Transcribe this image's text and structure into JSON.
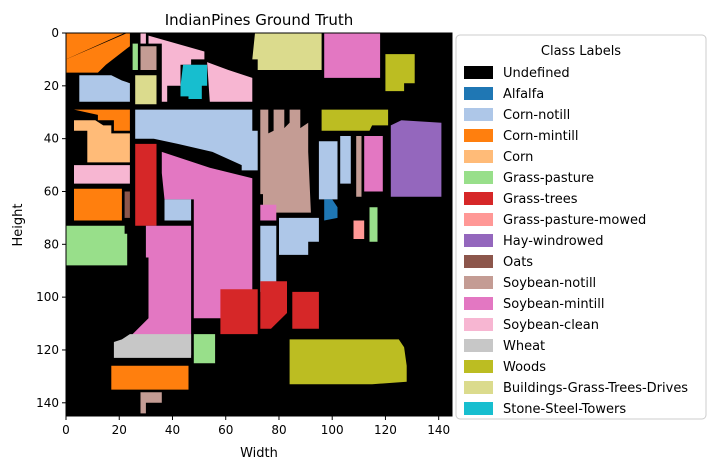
{
  "chart_data": {
    "type": "heatmap",
    "title": "IndianPines Ground Truth",
    "xlabel": "Width",
    "ylabel": "Height",
    "xlim": [
      0,
      145
    ],
    "ylim": [
      145,
      0
    ],
    "xticks": [
      0,
      20,
      40,
      60,
      80,
      100,
      120,
      140
    ],
    "yticks": [
      0,
      20,
      40,
      60,
      80,
      100,
      120,
      140
    ],
    "legend_title": "Class Labels",
    "legend_position": "right",
    "classes": [
      {
        "name": "Undefined",
        "color": "#000000"
      },
      {
        "name": "Alfalfa",
        "color": "#1f77b4"
      },
      {
        "name": "Corn-notill",
        "color": "#aec7e8"
      },
      {
        "name": "Corn-mintill",
        "color": "#ff7f0e"
      },
      {
        "name": "Corn",
        "color": "#ffbb78"
      },
      {
        "name": "Grass-pasture",
        "color": "#98df8a"
      },
      {
        "name": "Grass-trees",
        "color": "#d62728"
      },
      {
        "name": "Grass-pasture-mowed",
        "color": "#ff9896"
      },
      {
        "name": "Hay-windrowed",
        "color": "#9467bd"
      },
      {
        "name": "Oats",
        "color": "#8c564b"
      },
      {
        "name": "Soybean-notill",
        "color": "#c49c94"
      },
      {
        "name": "Soybean-mintill",
        "color": "#e377c2"
      },
      {
        "name": "Soybean-clean",
        "color": "#f7b6d2"
      },
      {
        "name": "Wheat",
        "color": "#c7c7c7"
      },
      {
        "name": "Woods",
        "color": "#bcbd22"
      },
      {
        "name": "Buildings-Grass-Trees-Drives",
        "color": "#dbdb8d"
      },
      {
        "name": "Stone-Steel-Towers",
        "color": "#17becf"
      }
    ],
    "regions": [
      {
        "label": "Corn-mintill",
        "poly": [
          [
            0,
            0
          ],
          [
            22,
            0
          ],
          [
            0,
            10
          ]
        ]
      },
      {
        "label": "Corn-mintill",
        "poly": [
          [
            23,
            0
          ],
          [
            24,
            0
          ],
          [
            24,
            5
          ],
          [
            15,
            12
          ],
          [
            12,
            15
          ],
          [
            0,
            15
          ],
          [
            0,
            10
          ]
        ]
      },
      {
        "label": "Corn-notill",
        "poly": [
          [
            5,
            16
          ],
          [
            17,
            16
          ],
          [
            21,
            18
          ],
          [
            24,
            19
          ],
          [
            24,
            26
          ],
          [
            5,
            26
          ]
        ]
      },
      {
        "label": "Corn-mintill",
        "poly": [
          [
            3,
            29
          ],
          [
            24,
            29
          ],
          [
            24,
            37
          ],
          [
            18,
            37
          ],
          [
            18,
            33
          ],
          [
            12,
            33
          ],
          [
            12,
            31
          ]
        ]
      },
      {
        "label": "Corn",
        "poly": [
          [
            3,
            33
          ],
          [
            11,
            33
          ],
          [
            14,
            35
          ],
          [
            17,
            35
          ],
          [
            17,
            38
          ],
          [
            24,
            38
          ],
          [
            24,
            49
          ],
          [
            8,
            49
          ],
          [
            8,
            37
          ],
          [
            3,
            37
          ]
        ]
      },
      {
        "label": "Soybean-clean",
        "poly": [
          [
            3,
            50
          ],
          [
            24,
            50
          ],
          [
            24,
            57
          ],
          [
            3,
            57
          ]
        ]
      },
      {
        "label": "Corn-mintill",
        "poly": [
          [
            3,
            59
          ],
          [
            21,
            59
          ],
          [
            21,
            71
          ],
          [
            3,
            71
          ]
        ]
      },
      {
        "label": "Oats",
        "poly": [
          [
            22,
            60
          ],
          [
            24,
            60
          ],
          [
            24,
            70
          ],
          [
            22,
            70
          ]
        ]
      },
      {
        "label": "Grass-pasture",
        "poly": [
          [
            0,
            73
          ],
          [
            22,
            73
          ],
          [
            22,
            76
          ],
          [
            23,
            76
          ],
          [
            23,
            88
          ],
          [
            0,
            88
          ]
        ]
      },
      {
        "label": "Grass-pasture",
        "poly": [
          [
            25,
            4
          ],
          [
            27,
            4
          ],
          [
            27,
            14
          ],
          [
            25,
            14
          ]
        ]
      },
      {
        "label": "Soybean-notill",
        "poly": [
          [
            28,
            5
          ],
          [
            34,
            5
          ],
          [
            34,
            14
          ],
          [
            28,
            14
          ]
        ]
      },
      {
        "label": "Buildings-Grass-Trees-Drives",
        "poly": [
          [
            26,
            16
          ],
          [
            34,
            16
          ],
          [
            34,
            27
          ],
          [
            26,
            27
          ]
        ]
      },
      {
        "label": "Soybean-clean",
        "poly": [
          [
            28,
            0
          ],
          [
            30,
            0
          ],
          [
            30,
            4
          ],
          [
            28,
            4
          ]
        ]
      },
      {
        "label": "Soybean-clean",
        "poly": [
          [
            31,
            1
          ],
          [
            52,
            7
          ],
          [
            52,
            10
          ],
          [
            47,
            10
          ],
          [
            47,
            12
          ],
          [
            43,
            12
          ],
          [
            43,
            20
          ],
          [
            38,
            20
          ],
          [
            38,
            26
          ],
          [
            36,
            26
          ],
          [
            36,
            4
          ],
          [
            31,
            4
          ]
        ]
      },
      {
        "label": "Stone-Steel-Towers",
        "poly": [
          [
            44,
            12
          ],
          [
            53,
            12
          ],
          [
            53,
            20
          ],
          [
            51,
            20
          ],
          [
            51,
            25
          ],
          [
            46,
            25
          ],
          [
            46,
            24
          ],
          [
            43,
            24
          ],
          [
            43,
            20
          ]
        ]
      },
      {
        "label": "Soybean-clean",
        "poly": [
          [
            53,
            11
          ],
          [
            61,
            14
          ],
          [
            70,
            17
          ],
          [
            70,
            26
          ],
          [
            54,
            26
          ]
        ]
      },
      {
        "label": "Buildings-Grass-Trees-Drives",
        "poly": [
          [
            71,
            0
          ],
          [
            96,
            0
          ],
          [
            96,
            14
          ],
          [
            72,
            14
          ],
          [
            72,
            10
          ],
          [
            70,
            10
          ]
        ]
      },
      {
        "label": "Soybean-mintill",
        "poly": [
          [
            97,
            0
          ],
          [
            118,
            0
          ],
          [
            118,
            17
          ],
          [
            97,
            17
          ]
        ]
      },
      {
        "label": "Woods",
        "poly": [
          [
            120,
            8
          ],
          [
            131,
            8
          ],
          [
            131,
            19
          ],
          [
            127,
            19
          ],
          [
            127,
            22
          ],
          [
            120,
            22
          ]
        ]
      },
      {
        "label": "Corn-notill",
        "poly": [
          [
            26,
            29
          ],
          [
            70,
            29
          ],
          [
            70,
            37
          ],
          [
            72,
            37
          ],
          [
            72,
            46
          ],
          [
            72,
            52
          ],
          [
            66,
            52
          ],
          [
            66,
            50
          ],
          [
            55,
            45
          ],
          [
            42,
            42
          ],
          [
            33,
            40
          ],
          [
            26,
            40
          ]
        ]
      },
      {
        "label": "Soybean-notill",
        "poly": [
          [
            73,
            29
          ],
          [
            76,
            29
          ],
          [
            76,
            38
          ],
          [
            78,
            37
          ],
          [
            78,
            29
          ],
          [
            82,
            29
          ],
          [
            82,
            36
          ],
          [
            84,
            34
          ],
          [
            84,
            29
          ],
          [
            88,
            29
          ],
          [
            88,
            36
          ],
          [
            91,
            34
          ],
          [
            91,
            45
          ],
          [
            92,
            68
          ],
          [
            74,
            68
          ],
          [
            74,
            61
          ],
          [
            73,
            61
          ]
        ]
      },
      {
        "label": "Woods",
        "poly": [
          [
            96,
            29
          ],
          [
            121,
            29
          ],
          [
            121,
            35
          ],
          [
            115,
            35
          ],
          [
            114,
            37
          ],
          [
            96,
            37
          ]
        ]
      },
      {
        "label": "Hay-windrowed",
        "poly": [
          [
            122,
            35
          ],
          [
            126,
            33
          ],
          [
            141,
            34
          ],
          [
            141,
            62
          ],
          [
            122,
            62
          ]
        ]
      },
      {
        "label": "Corn-notill",
        "poly": [
          [
            95,
            41
          ],
          [
            102,
            41
          ],
          [
            102,
            63
          ],
          [
            95,
            63
          ]
        ]
      },
      {
        "label": "Corn-notill",
        "poly": [
          [
            103,
            39
          ],
          [
            107,
            39
          ],
          [
            107,
            57
          ],
          [
            103,
            57
          ]
        ]
      },
      {
        "label": "Soybean-notill",
        "poly": [
          [
            109,
            39
          ],
          [
            111,
            39
          ],
          [
            111,
            62
          ],
          [
            109,
            62
          ]
        ]
      },
      {
        "label": "Soybean-mintill",
        "poly": [
          [
            112,
            39
          ],
          [
            119,
            39
          ],
          [
            119,
            60
          ],
          [
            112,
            60
          ]
        ]
      },
      {
        "label": "Grass-trees",
        "poly": [
          [
            26,
            42
          ],
          [
            34,
            42
          ],
          [
            34,
            73
          ],
          [
            26,
            73
          ]
        ]
      },
      {
        "label": "Soybean-mintill",
        "poly": [
          [
            36,
            45
          ],
          [
            54,
            51
          ],
          [
            70,
            55
          ],
          [
            70,
            108
          ],
          [
            48,
            108
          ],
          [
            48,
            63
          ],
          [
            37,
            63
          ],
          [
            36,
            53
          ]
        ]
      },
      {
        "label": "Corn-notill",
        "poly": [
          [
            37,
            63
          ],
          [
            47,
            63
          ],
          [
            47,
            71
          ],
          [
            37,
            71
          ]
        ]
      },
      {
        "label": "Soybean-mintill",
        "poly": [
          [
            30,
            73
          ],
          [
            47,
            73
          ],
          [
            47,
            122
          ],
          [
            25,
            122
          ],
          [
            25,
            114
          ],
          [
            31,
            108
          ],
          [
            31,
            85
          ],
          [
            30,
            85
          ]
        ]
      },
      {
        "label": "Soybean-mintill",
        "poly": [
          [
            73,
            65
          ],
          [
            79,
            65
          ],
          [
            79,
            71
          ],
          [
            73,
            71
          ]
        ]
      },
      {
        "label": "Corn-notill",
        "poly": [
          [
            80,
            70
          ],
          [
            95,
            70
          ],
          [
            95,
            79
          ],
          [
            91,
            79
          ],
          [
            91,
            84
          ],
          [
            80,
            84
          ]
        ]
      },
      {
        "label": "Corn-notill",
        "poly": [
          [
            73,
            73
          ],
          [
            79,
            73
          ],
          [
            79,
            98
          ],
          [
            73,
            98
          ]
        ]
      },
      {
        "label": "Alfalfa",
        "poly": [
          [
            97,
            63
          ],
          [
            100,
            63
          ],
          [
            102,
            66
          ],
          [
            102,
            70
          ],
          [
            97,
            71
          ]
        ]
      },
      {
        "label": "Grass-pasture-mowed",
        "poly": [
          [
            108,
            71
          ],
          [
            112,
            71
          ],
          [
            112,
            78
          ],
          [
            108,
            78
          ]
        ]
      },
      {
        "label": "Grass-pasture",
        "poly": [
          [
            114,
            66
          ],
          [
            117,
            66
          ],
          [
            117,
            79
          ],
          [
            114,
            79
          ]
        ]
      },
      {
        "label": "Grass-trees",
        "poly": [
          [
            58,
            97
          ],
          [
            72,
            97
          ],
          [
            72,
            114
          ],
          [
            58,
            114
          ]
        ]
      },
      {
        "label": "Grass-trees",
        "poly": [
          [
            73,
            94
          ],
          [
            83,
            94
          ],
          [
            83,
            106
          ],
          [
            77,
            112
          ],
          [
            73,
            112
          ]
        ]
      },
      {
        "label": "Grass-trees",
        "poly": [
          [
            85,
            98
          ],
          [
            95,
            98
          ],
          [
            95,
            112
          ],
          [
            85,
            112
          ]
        ]
      },
      {
        "label": "Wheat",
        "poly": [
          [
            18,
            117
          ],
          [
            21,
            116
          ],
          [
            24,
            114
          ],
          [
            47,
            114
          ],
          [
            47,
            123
          ],
          [
            18,
            123
          ]
        ]
      },
      {
        "label": "Grass-pasture",
        "poly": [
          [
            48,
            114
          ],
          [
            56,
            114
          ],
          [
            56,
            125
          ],
          [
            48,
            125
          ]
        ]
      },
      {
        "label": "Woods",
        "poly": [
          [
            85,
            116
          ],
          [
            125,
            116
          ],
          [
            127,
            119
          ],
          [
            128,
            126
          ],
          [
            128,
            132
          ],
          [
            115,
            133
          ],
          [
            84,
            133
          ],
          [
            84,
            142
          ],
          [
            84,
            116
          ]
        ]
      },
      {
        "label": "Corn-mintill",
        "poly": [
          [
            17,
            126
          ],
          [
            46,
            126
          ],
          [
            46,
            135
          ],
          [
            17,
            135
          ]
        ]
      },
      {
        "label": "Soybean-notill",
        "poly": [
          [
            28,
            136
          ],
          [
            36,
            136
          ],
          [
            36,
            140
          ],
          [
            30,
            140
          ],
          [
            30,
            144
          ],
          [
            28,
            144
          ]
        ]
      }
    ]
  }
}
